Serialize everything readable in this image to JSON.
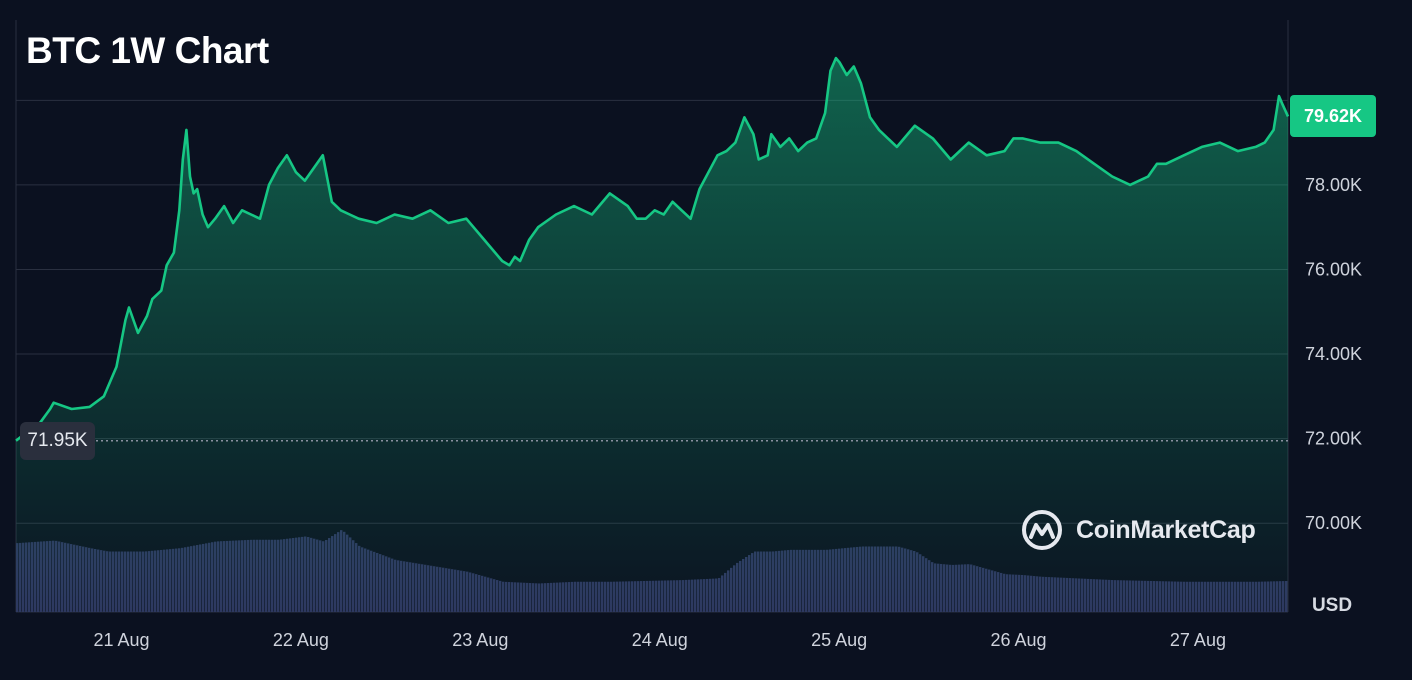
{
  "colors": {
    "background": "#0b1120",
    "line": "#16c784",
    "area_top": "#16c784",
    "grid": "#2a3040",
    "volume": "#2e3660",
    "current_tag": "#16c784",
    "open_tag": "#2a2f3d"
  },
  "icons": {
    "watermark_logo": "coinmarketcap-logo-icon"
  },
  "watermark": {
    "text": "CoinMarketCap"
  },
  "chart_data": {
    "type": "area",
    "title": "BTC 1W Chart",
    "unit": "USD",
    "y_tick_labels": [
      "70.00K",
      "72.00K",
      "74.00K",
      "76.00K",
      "78.00K"
    ],
    "y_ticks": [
      70000,
      72000,
      74000,
      76000,
      78000
    ],
    "ylim": [
      67900,
      81900
    ],
    "x_tick_labels": [
      "21 Aug",
      "22 Aug",
      "23 Aug",
      "24 Aug",
      "25 Aug",
      "26 Aug",
      "27 Aug"
    ],
    "x_ticks": [
      1,
      2,
      3,
      4,
      5,
      6,
      7
    ],
    "xlim": [
      0.49,
      7.58
    ],
    "current_label": "79.62K",
    "current_value": 79620,
    "open_label": "71.95K",
    "open_value": 71950,
    "grid": true,
    "series": [
      {
        "x": [
          0.49,
          0.55,
          0.62,
          0.68,
          0.7,
          0.8,
          0.9,
          0.98,
          1.05,
          1.1,
          1.12,
          1.17,
          1.22,
          1.25,
          1.3,
          1.33,
          1.37,
          1.4,
          1.42,
          1.44,
          1.46,
          1.48,
          1.5,
          1.53,
          1.56,
          1.6,
          1.65,
          1.7,
          1.75,
          1.8,
          1.85,
          1.9,
          1.95,
          2.0,
          2.05,
          2.1,
          2.15,
          2.2,
          2.25,
          2.3,
          2.35,
          2.4,
          2.5,
          2.6,
          2.7,
          2.8,
          2.9,
          3.0,
          3.1,
          3.2,
          3.24,
          3.27,
          3.3,
          3.35,
          3.4,
          3.5,
          3.6,
          3.7,
          3.8,
          3.9,
          3.95,
          4.0,
          4.05,
          4.1,
          4.15,
          4.2,
          4.25,
          4.3,
          4.35,
          4.4,
          4.45,
          4.5,
          4.55,
          4.6,
          4.63,
          4.68,
          4.7,
          4.75,
          4.8,
          4.85,
          4.9,
          4.95,
          5.0,
          5.03,
          5.06,
          5.08,
          5.12,
          5.16,
          5.2,
          5.25,
          5.3,
          5.35,
          5.4,
          5.5,
          5.6,
          5.7,
          5.8,
          5.9,
          6.0,
          6.05,
          6.1,
          6.2,
          6.3,
          6.4,
          6.5,
          6.6,
          6.7,
          6.75,
          6.8,
          6.85,
          6.9,
          7.0,
          7.1,
          7.2,
          7.3,
          7.4,
          7.45,
          7.5,
          7.53,
          7.55,
          7.58
        ],
        "y": [
          71950,
          72150,
          72350,
          72700,
          72850,
          72700,
          72750,
          73000,
          73700,
          74800,
          75100,
          74500,
          74900,
          75300,
          75500,
          76100,
          76400,
          77400,
          78600,
          79300,
          78200,
          77800,
          77900,
          77300,
          77000,
          77200,
          77500,
          77100,
          77400,
          77300,
          77200,
          78000,
          78400,
          78700,
          78300,
          78100,
          78400,
          78700,
          77600,
          77400,
          77300,
          77200,
          77100,
          77300,
          77200,
          77400,
          77100,
          77200,
          76700,
          76200,
          76100,
          76300,
          76200,
          76700,
          77000,
          77300,
          77500,
          77300,
          77800,
          77500,
          77200,
          77200,
          77400,
          77300,
          77600,
          77400,
          77200,
          77900,
          78300,
          78700,
          78800,
          79000,
          79600,
          79200,
          78600,
          78700,
          79200,
          78900,
          79100,
          78800,
          79000,
          79100,
          79700,
          80700,
          81000,
          80900,
          80600,
          80800,
          80400,
          79600,
          79300,
          79100,
          78900,
          79400,
          79100,
          78600,
          79000,
          78700,
          78800,
          79100,
          79100,
          79000,
          79000,
          78800,
          78500,
          78200,
          78000,
          78100,
          78200,
          78500,
          78500,
          78700,
          78900,
          79000,
          78800,
          78900,
          79000,
          79300,
          80100,
          79900,
          79620
        ]
      }
    ],
    "volume": {
      "x": [
        0.49,
        0.7,
        0.9,
        1.0,
        1.2,
        1.4,
        1.6,
        1.8,
        1.95,
        2.1,
        2.2,
        2.3,
        2.4,
        2.6,
        2.8,
        3.0,
        3.1,
        3.2,
        3.4,
        3.6,
        3.8,
        4.0,
        4.2,
        4.4,
        4.5,
        4.6,
        4.7,
        4.8,
        5.0,
        5.1,
        5.2,
        5.4,
        5.5,
        5.6,
        5.7,
        5.8,
        6.0,
        6.1,
        6.2,
        6.4,
        6.6,
        6.8,
        7.0,
        7.2,
        7.4,
        7.58
      ],
      "y": [
        0.82,
        0.85,
        0.76,
        0.72,
        0.72,
        0.76,
        0.84,
        0.86,
        0.86,
        0.9,
        0.84,
        0.98,
        0.78,
        0.62,
        0.55,
        0.48,
        0.42,
        0.36,
        0.34,
        0.36,
        0.36,
        0.37,
        0.38,
        0.4,
        0.58,
        0.72,
        0.72,
        0.74,
        0.74,
        0.76,
        0.78,
        0.78,
        0.72,
        0.58,
        0.56,
        0.57,
        0.45,
        0.44,
        0.42,
        0.4,
        0.38,
        0.37,
        0.36,
        0.36,
        0.36,
        0.37
      ]
    }
  }
}
